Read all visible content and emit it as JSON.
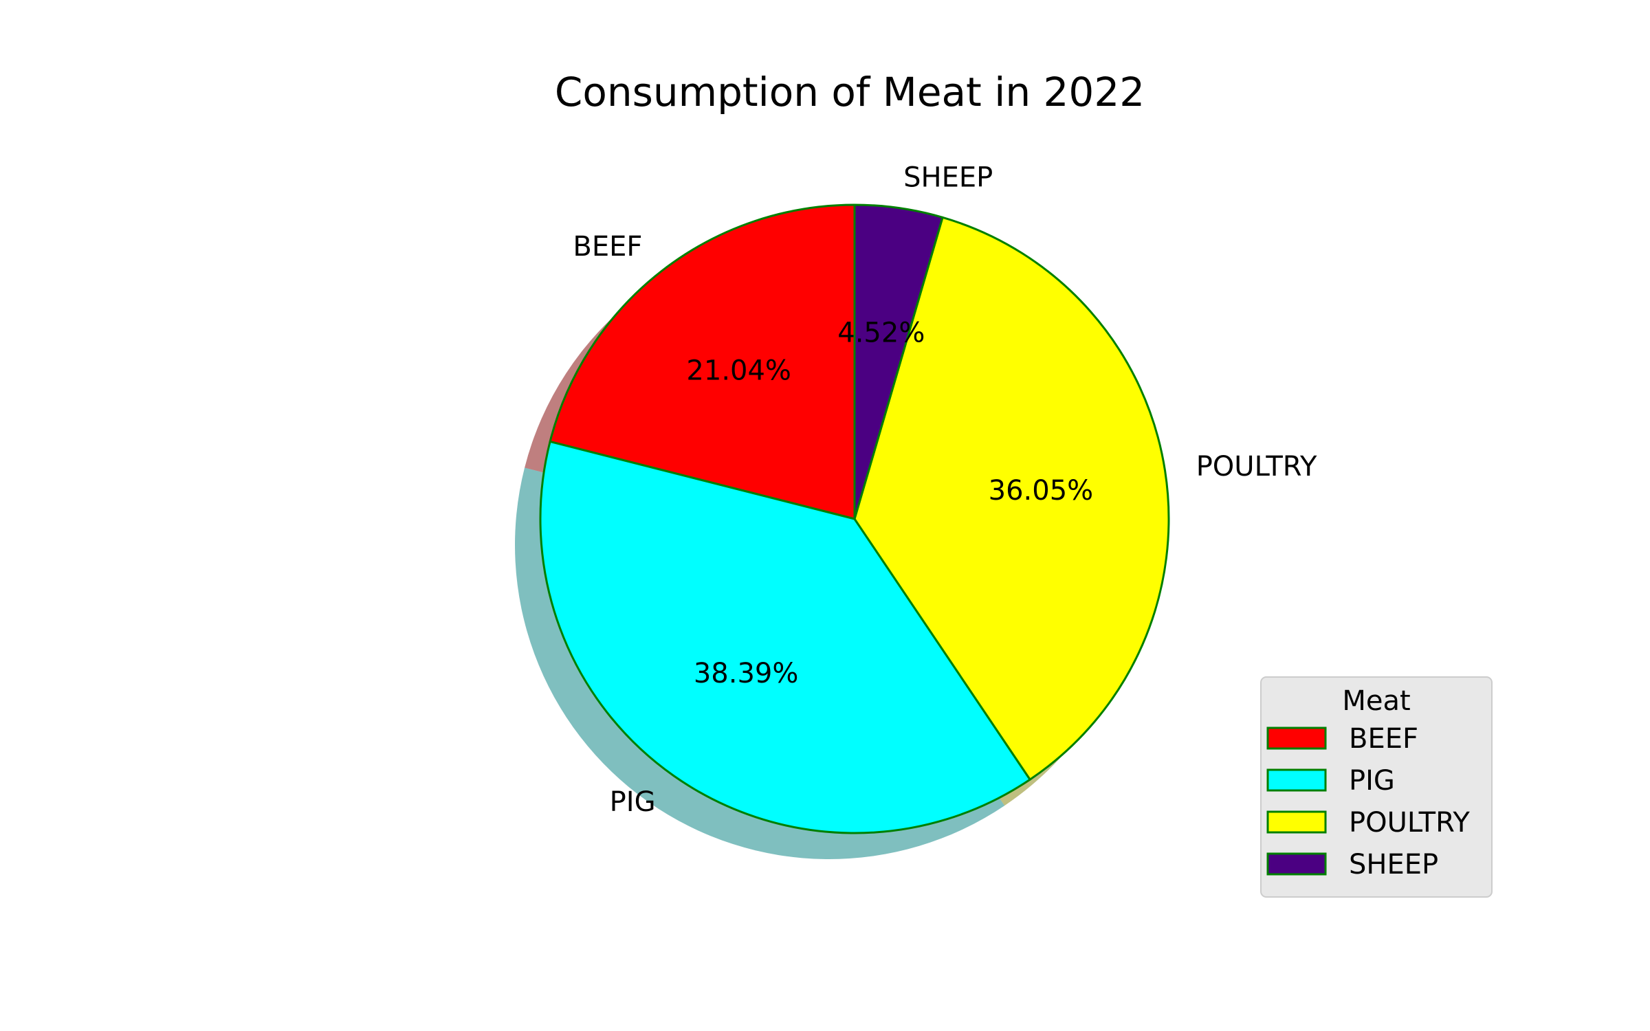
{
  "chart_data": {
    "type": "pie",
    "title": "Consumption of Meat in 2022",
    "categories": [
      "BEEF",
      "PIG",
      "POULTRY",
      "SHEEP"
    ],
    "values": [
      21.04,
      38.39,
      36.05,
      4.52
    ],
    "percent_labels": [
      "21.04%",
      "38.39%",
      "36.05%",
      "4.52%"
    ],
    "colors": [
      "#ff0000",
      "#00ffff",
      "#ffff00",
      "#4b0082"
    ],
    "edge_color": "#008000",
    "shadow": true,
    "start_angle_deg": 90,
    "direction": "counterclockwise",
    "legend": {
      "title": "Meat",
      "entries": [
        "BEEF",
        "PIG",
        "POULTRY",
        "SHEEP"
      ],
      "placement": "lower-right"
    }
  }
}
